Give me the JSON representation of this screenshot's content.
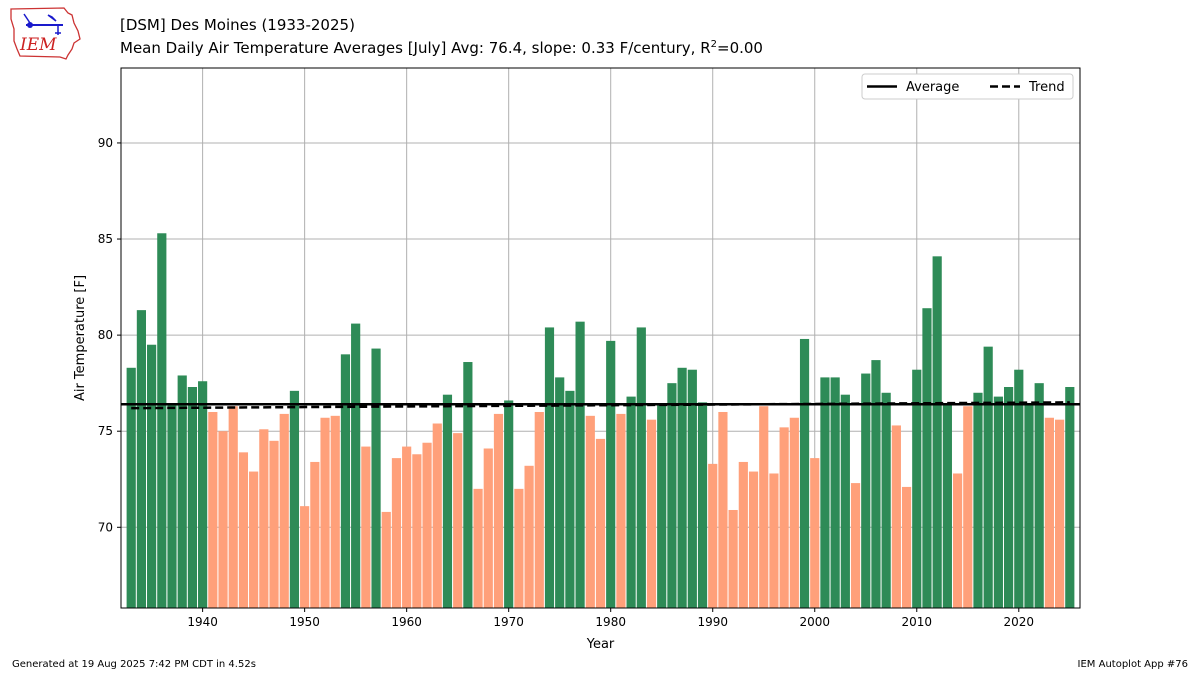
{
  "header": {
    "logo_text": "IEM",
    "title_line1": "[DSM] Des Moines (1933-2025)",
    "title_line2_prefix": "Mean Daily Air Temperature Averages [July]  Avg: 76.4, slope: 0.33 F/century, R",
    "title_line2_sup": "2",
    "title_line2_suffix": "=0.00"
  },
  "footer": {
    "generated": "Generated at 19 Aug 2025 7:42 PM CDT in 4.52s",
    "app": "IEM Autoplot App #76"
  },
  "colors": {
    "above": "#2e8b57",
    "below": "#ffa07a",
    "average_line": "#000000",
    "trend_line": "#000000",
    "grid": "#b0b0b0"
  },
  "chart_data": {
    "type": "bar",
    "xlabel": "Year",
    "ylabel": "Air Temperature [F]",
    "xlim": [
      1932,
      2026
    ],
    "ylim": [
      65.8,
      93.9
    ],
    "xticks": [
      1940,
      1950,
      1960,
      1970,
      1980,
      1990,
      2000,
      2010,
      2020
    ],
    "yticks": [
      70,
      75,
      80,
      85,
      90
    ],
    "grid": true,
    "legend_position": "top-right",
    "legend": [
      "Average",
      "Trend"
    ],
    "average": 76.4,
    "trend": {
      "start_year": 1933,
      "start_value": 76.2,
      "end_year": 2025,
      "end_value": 76.5
    },
    "years": [
      1933,
      1934,
      1935,
      1936,
      1937,
      1938,
      1939,
      1940,
      1941,
      1942,
      1943,
      1944,
      1945,
      1946,
      1947,
      1948,
      1949,
      1950,
      1951,
      1952,
      1953,
      1954,
      1955,
      1956,
      1957,
      1958,
      1959,
      1960,
      1961,
      1962,
      1963,
      1964,
      1965,
      1966,
      1967,
      1968,
      1969,
      1970,
      1971,
      1972,
      1973,
      1974,
      1975,
      1976,
      1977,
      1978,
      1979,
      1980,
      1981,
      1982,
      1983,
      1984,
      1985,
      1986,
      1987,
      1988,
      1989,
      1990,
      1991,
      1992,
      1993,
      1994,
      1995,
      1996,
      1997,
      1998,
      1999,
      2000,
      2001,
      2002,
      2003,
      2004,
      2005,
      2006,
      2007,
      2008,
      2009,
      2010,
      2011,
      2012,
      2013,
      2014,
      2015,
      2016,
      2017,
      2018,
      2019,
      2020,
      2021,
      2022,
      2023,
      2024,
      2025
    ],
    "values": [
      78.3,
      81.3,
      79.5,
      85.3,
      76.4,
      77.9,
      77.3,
      77.6,
      76.0,
      75.0,
      76.3,
      73.9,
      72.9,
      75.1,
      74.5,
      75.9,
      77.1,
      71.1,
      73.4,
      75.7,
      75.8,
      79.0,
      80.6,
      74.2,
      79.3,
      70.8,
      73.6,
      74.2,
      73.8,
      74.4,
      75.4,
      76.9,
      74.9,
      78.6,
      72.0,
      74.1,
      75.9,
      76.6,
      72.0,
      73.2,
      76.0,
      80.4,
      77.8,
      77.1,
      80.7,
      75.8,
      74.6,
      79.7,
      75.9,
      76.8,
      80.4,
      75.6,
      76.4,
      77.5,
      78.3,
      78.2,
      76.5,
      73.3,
      76.0,
      70.9,
      73.4,
      72.9,
      76.3,
      72.8,
      75.2,
      75.7,
      79.8,
      73.6,
      77.8,
      77.8,
      76.9,
      72.3,
      78.0,
      78.7,
      77.0,
      75.3,
      72.1,
      78.2,
      81.4,
      84.1,
      76.4,
      72.8,
      76.3,
      77.0,
      79.4,
      76.8,
      77.3,
      78.2,
      76.4,
      77.5,
      75.7,
      75.6,
      77.3
    ]
  }
}
